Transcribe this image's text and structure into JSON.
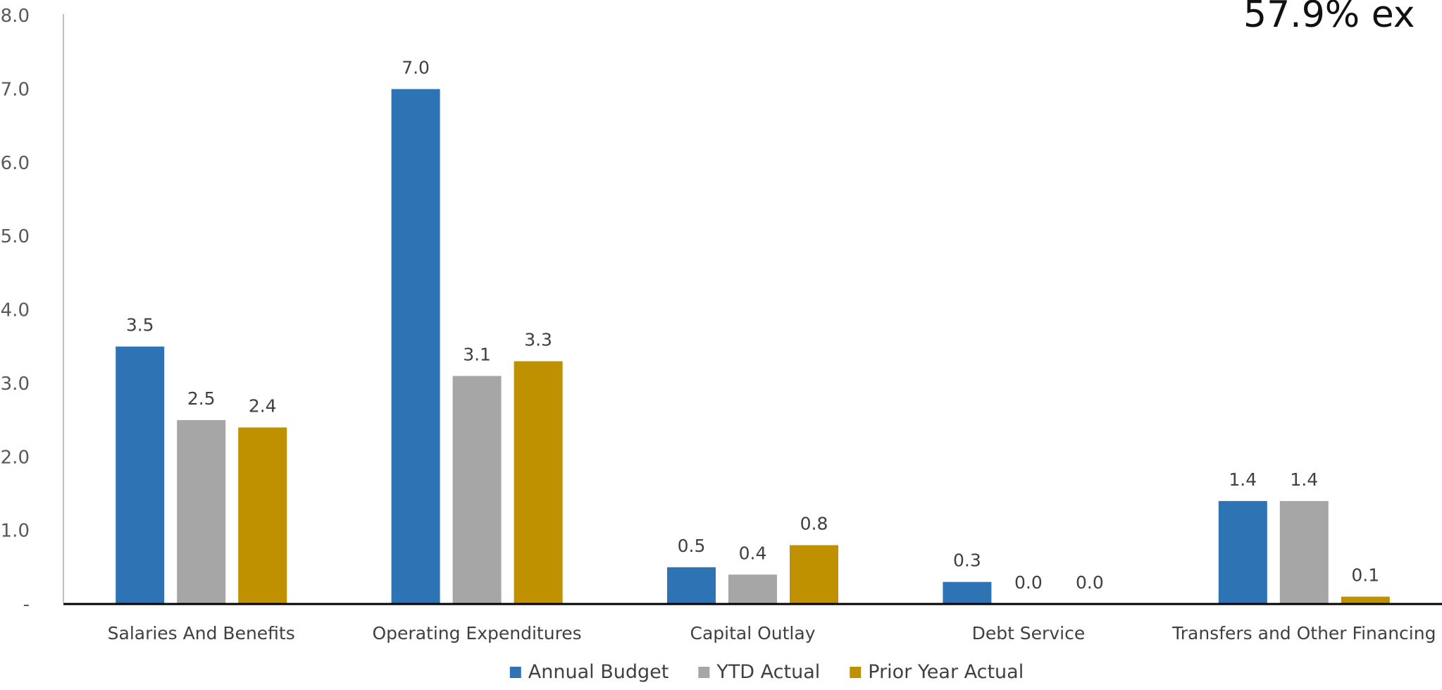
{
  "chart_data": {
    "type": "bar",
    "categories": [
      "Salaries And Benefits",
      "Operating Expenditures",
      "Capital Outlay",
      "Debt Service",
      "Transfers and Other Financing"
    ],
    "series": [
      {
        "name": "Annual Budget",
        "values": [
          3.5,
          7.0,
          0.5,
          0.3,
          1.4
        ],
        "labels": [
          "3.5",
          "7.0",
          "0.5",
          "0.3",
          "1.4"
        ],
        "color": "#2E74B5"
      },
      {
        "name": "YTD Actual",
        "values": [
          2.5,
          3.1,
          0.4,
          0.0,
          1.4
        ],
        "labels": [
          "2.5",
          "3.1",
          "0.4",
          "0.0",
          "1.4"
        ],
        "color": "#A6A6A6"
      },
      {
        "name": "Prior Year Actual",
        "values": [
          2.4,
          3.3,
          0.8,
          0.0,
          0.1
        ],
        "labels": [
          "2.4",
          "3.3",
          "0.8",
          "0.0",
          "0.1"
        ],
        "color": "#BF9000"
      }
    ],
    "yticks": [
      0,
      1,
      2,
      3,
      4,
      5,
      6,
      7,
      8
    ],
    "ytick_labels": [
      "-",
      "1.0",
      "2.0",
      "3.0",
      "4.0",
      "5.0",
      "6.0",
      "7.0",
      "8.0"
    ],
    "ylim": [
      0,
      8
    ],
    "grid": false,
    "legend": "bottom",
    "annotation": "57.9% ex",
    "title": "",
    "xlabel": "",
    "ylabel": ""
  }
}
